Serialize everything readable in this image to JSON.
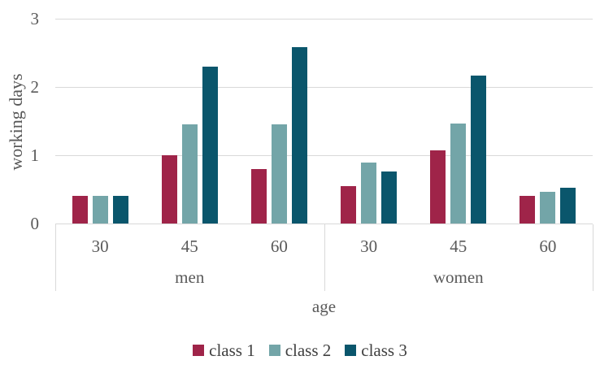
{
  "chart_data": {
    "type": "bar",
    "title": "",
    "ylabel": "working days",
    "xlabel": "age",
    "ylim": [
      0,
      3
    ],
    "y_ticks": [
      "0",
      "1",
      "2",
      "3"
    ],
    "grid": true,
    "legend_position": "bottom",
    "x_groups": [
      {
        "label": "men",
        "ticks": [
          "30",
          "45",
          "60"
        ]
      },
      {
        "label": "women",
        "ticks": [
          "30",
          "45",
          "60"
        ]
      }
    ],
    "categories": [
      "men 30",
      "men 45",
      "men 60",
      "women 30",
      "women 45",
      "women 60"
    ],
    "series": [
      {
        "name": "class 1",
        "color": "#9F2449",
        "values": [
          0.4,
          1.0,
          0.8,
          0.55,
          1.07,
          0.4
        ]
      },
      {
        "name": "class 2",
        "color": "#73A5A8",
        "values": [
          0.4,
          1.45,
          1.45,
          0.89,
          1.46,
          0.47
        ]
      },
      {
        "name": "class 3",
        "color": "#0A566C",
        "values": [
          0.4,
          2.3,
          2.58,
          0.76,
          2.17,
          0.52
        ]
      }
    ]
  },
  "colors": {
    "axis_line": "#d9d9d9",
    "axis_text": "#595959",
    "legend_text": "#404040",
    "background": "#ffffff"
  }
}
